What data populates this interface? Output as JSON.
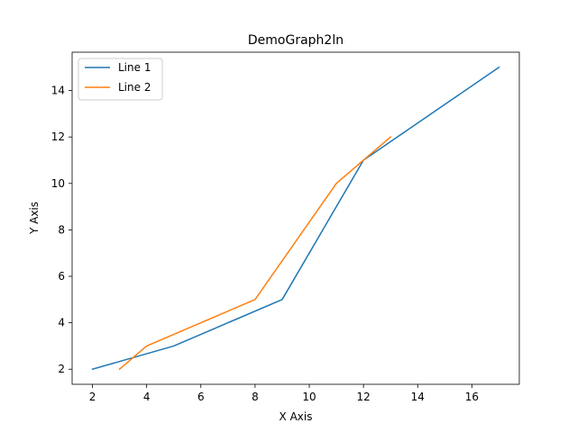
{
  "chart_data": {
    "type": "line",
    "title": "DemoGraph2ln",
    "xlabel": "X Axis",
    "ylabel": "Y Axis",
    "xlim": [
      1.25,
      17.75
    ],
    "ylim": [
      1.35,
      15.65
    ],
    "xticks": [
      2,
      4,
      6,
      8,
      10,
      12,
      14,
      16
    ],
    "yticks": [
      2,
      4,
      6,
      8,
      10,
      12,
      14
    ],
    "grid": false,
    "legend_position": "top-left",
    "series": [
      {
        "name": "Line 1",
        "color": "#1f77b4",
        "points": [
          [
            2,
            2
          ],
          [
            5,
            3
          ],
          [
            9,
            5
          ],
          [
            12,
            11
          ],
          [
            17,
            15
          ]
        ]
      },
      {
        "name": "Line 2",
        "color": "#ff7f0e",
        "points": [
          [
            3,
            2
          ],
          [
            4,
            3
          ],
          [
            8,
            5
          ],
          [
            11,
            10
          ],
          [
            12,
            11
          ],
          [
            13,
            12
          ]
        ]
      }
    ]
  }
}
